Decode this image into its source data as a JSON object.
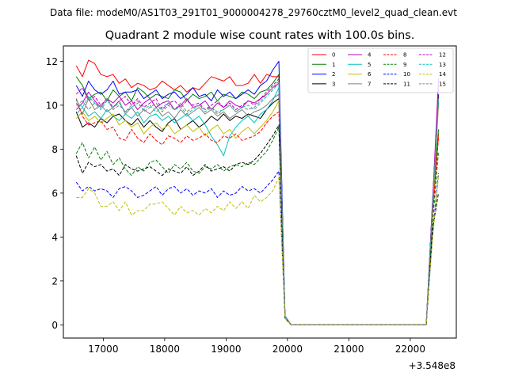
{
  "figure": {
    "suptitle": "Data file: modeM0/AS1T03_291T01_9000004278_29760cztM0_level2_quad_clean.evt"
  },
  "chart_data": {
    "type": "line",
    "title": "Quadrant 2 module wise count rates with 100.0s bins.",
    "xlabel": "",
    "ylabel": "",
    "x_offset_label": "+3.548e8",
    "xlim": [
      16350,
      22750
    ],
    "ylim": [
      -0.6,
      12.7
    ],
    "xticks": [
      17000,
      18000,
      19000,
      20000,
      21000,
      22000
    ],
    "xtick_labels": [
      "17000",
      "18000",
      "19000",
      "20000",
      "21000",
      "22000"
    ],
    "yticks": [
      0,
      2,
      4,
      6,
      8,
      10,
      12
    ],
    "ytick_labels": [
      "0",
      "2",
      "4",
      "6",
      "8",
      "10",
      "12"
    ],
    "grid": false,
    "legend": {
      "placement": "top-right",
      "ncol": 4
    },
    "x": [
      16560,
      16660,
      16760,
      16860,
      16960,
      17060,
      17160,
      17260,
      17360,
      17460,
      17560,
      17660,
      17760,
      17860,
      17960,
      18060,
      18160,
      18260,
      18360,
      18460,
      18560,
      18660,
      18760,
      18860,
      18960,
      19060,
      19160,
      19260,
      19360,
      19460,
      19560,
      19660,
      19760,
      19860,
      19960,
      20060,
      20160,
      20260,
      20360,
      20460,
      20560,
      20660,
      20760,
      20860,
      20960,
      21060,
      21160,
      21260,
      21360,
      21460,
      21560,
      21660,
      21760,
      21860,
      21960,
      22060,
      22160,
      22260,
      22360,
      22460
    ],
    "series": [
      {
        "name": "0",
        "color": "#ff0000",
        "dash": "solid",
        "values": [
          11.8,
          11.3,
          12.05,
          11.9,
          11.4,
          11.3,
          11.4,
          11.0,
          11.2,
          10.8,
          11.0,
          10.9,
          10.7,
          10.8,
          11.1,
          10.9,
          10.7,
          10.9,
          10.6,
          10.8,
          10.7,
          11.0,
          11.3,
          11.2,
          11.1,
          11.3,
          10.9,
          10.9,
          11.0,
          11.4,
          11.0,
          11.4,
          11.3,
          11.3,
          0.4,
          0,
          0,
          0,
          0,
          0,
          0,
          0,
          0,
          0,
          0,
          0,
          0,
          0,
          0,
          0,
          0,
          0,
          0,
          0,
          0,
          0,
          0,
          0,
          5.0,
          8.7
        ]
      },
      {
        "name": "1",
        "color": "#008000",
        "dash": "solid",
        "values": [
          11.3,
          10.9,
          10.3,
          10.5,
          10.6,
          10.2,
          10.7,
          10.4,
          10.6,
          10.2,
          10.8,
          10.6,
          10.3,
          10.5,
          10.4,
          10.3,
          10.7,
          10.6,
          10.2,
          10.5,
          10.3,
          10.4,
          10.6,
          10.2,
          10.5,
          10.4,
          10.3,
          10.6,
          10.5,
          10.3,
          10.6,
          10.7,
          11.0,
          11.4,
          0.4,
          0,
          0,
          0,
          0,
          0,
          0,
          0,
          0,
          0,
          0,
          0,
          0,
          0,
          0,
          0,
          0,
          0,
          0,
          0,
          0,
          0,
          0,
          0,
          5.3,
          8.9
        ]
      },
      {
        "name": "2",
        "color": "#0000ff",
        "dash": "solid",
        "values": [
          10.9,
          10.4,
          11.1,
          10.7,
          10.5,
          10.7,
          11.1,
          10.5,
          10.6,
          10.6,
          10.7,
          10.3,
          10.5,
          10.7,
          10.3,
          10.5,
          10.6,
          10.3,
          10.5,
          10.8,
          10.4,
          10.5,
          10.2,
          10.7,
          10.4,
          10.6,
          10.3,
          10.5,
          10.7,
          10.5,
          10.9,
          11.1,
          11.6,
          12.0,
          0.4,
          0,
          0,
          0,
          0,
          0,
          0,
          0,
          0,
          0,
          0,
          0,
          0,
          0,
          0,
          0,
          0,
          0,
          0,
          0,
          0,
          0,
          0,
          0,
          5.5,
          10.5
        ]
      },
      {
        "name": "3",
        "color": "#000000",
        "dash": "solid",
        "values": [
          9.7,
          9.0,
          9.2,
          9.0,
          9.4,
          9.2,
          9.5,
          9.6,
          9.3,
          9.1,
          9.4,
          9.0,
          9.3,
          9.0,
          8.8,
          9.2,
          9.4,
          8.9,
          9.1,
          9.3,
          9.0,
          9.2,
          9.5,
          9.3,
          9.6,
          9.3,
          9.5,
          9.4,
          9.6,
          9.5,
          9.4,
          9.8,
          10.1,
          10.3,
          0.4,
          0,
          0,
          0,
          0,
          0,
          0,
          0,
          0,
          0,
          0,
          0,
          0,
          0,
          0,
          0,
          0,
          0,
          0,
          0,
          0,
          0,
          0,
          0,
          5.1,
          10.4
        ]
      },
      {
        "name": "4",
        "color": "#bf00bf",
        "dash": "solid",
        "values": [
          9.8,
          10.1,
          10.6,
          10.2,
          9.9,
          10.3,
          10.1,
          10.4,
          10.0,
          10.2,
          9.8,
          10.1,
          10.3,
          9.9,
          10.1,
          10.2,
          9.8,
          10.0,
          10.3,
          9.9,
          10.0,
          10.2,
          9.8,
          10.1,
          9.9,
          10.2,
          10.0,
          9.9,
          10.2,
          10.1,
          10.3,
          10.5,
          10.8,
          11.0,
          0.4,
          0,
          0,
          0,
          0,
          0,
          0,
          0,
          0,
          0,
          0,
          0,
          0,
          0,
          0,
          0,
          0,
          0,
          0,
          0,
          0,
          0,
          0,
          0,
          5.4,
          11.2
        ]
      },
      {
        "name": "5",
        "color": "#00bfbf",
        "dash": "solid",
        "values": [
          9.6,
          9.9,
          9.5,
          9.7,
          9.4,
          9.8,
          9.5,
          9.3,
          9.6,
          9.4,
          9.7,
          9.2,
          9.5,
          9.6,
          9.3,
          9.5,
          9.2,
          9.4,
          9.6,
          9.3,
          9.5,
          9.1,
          8.6,
          8.2,
          7.7,
          8.6,
          9.0,
          9.3,
          9.5,
          9.2,
          9.6,
          9.8,
          10.2,
          10.8,
          0.4,
          0,
          0,
          0,
          0,
          0,
          0,
          0,
          0,
          0,
          0,
          0,
          0,
          0,
          0,
          0,
          0,
          0,
          0,
          0,
          0,
          0,
          0,
          0,
          5.2,
          10.2
        ]
      },
      {
        "name": "6",
        "color": "#bfbf00",
        "dash": "solid",
        "values": [
          9.4,
          9.7,
          9.3,
          9.5,
          9.2,
          9.4,
          9.6,
          9.1,
          9.3,
          9.0,
          9.2,
          8.7,
          9.0,
          9.2,
          8.9,
          9.1,
          8.7,
          8.9,
          9.1,
          8.8,
          9.0,
          8.6,
          8.9,
          9.1,
          8.7,
          8.9,
          8.5,
          8.8,
          9.0,
          8.7,
          9.0,
          9.3,
          9.7,
          10.2,
          0.4,
          0,
          0,
          0,
          0,
          0,
          0,
          0,
          0,
          0,
          0,
          0,
          0,
          0,
          0,
          0,
          0,
          0,
          0,
          0,
          0,
          0,
          0,
          0,
          5.0,
          10.0
        ]
      },
      {
        "name": "7",
        "color": "#808080",
        "dash": "solid",
        "values": [
          10.1,
          9.6,
          10.3,
          9.8,
          10.0,
          9.7,
          9.9,
          10.2,
          9.6,
          9.9,
          9.5,
          9.8,
          9.6,
          9.9,
          9.5,
          9.7,
          9.4,
          9.8,
          9.5,
          9.7,
          9.9,
          9.6,
          9.8,
          9.5,
          9.7,
          9.4,
          9.6,
          9.8,
          9.5,
          9.7,
          9.8,
          10.0,
          10.3,
          10.5,
          0.4,
          0,
          0,
          0,
          0,
          0,
          0,
          0,
          0,
          0,
          0,
          0,
          0,
          0,
          0,
          0,
          0,
          0,
          0,
          0,
          0,
          0,
          0,
          0,
          5.3,
          10.1
        ]
      },
      {
        "name": "8",
        "color": "#ff0000",
        "dash": "dashed",
        "values": [
          10.3,
          9.5,
          9.1,
          9.2,
          9.3,
          8.9,
          9.0,
          8.5,
          8.4,
          8.9,
          8.5,
          8.3,
          8.7,
          8.4,
          8.2,
          8.6,
          8.5,
          8.3,
          8.6,
          8.4,
          8.5,
          8.7,
          8.4,
          8.3,
          8.6,
          8.5,
          8.7,
          8.4,
          8.5,
          8.6,
          8.8,
          9.2,
          9.5,
          9.7,
          0.4,
          0,
          0,
          0,
          0,
          0,
          0,
          0,
          0,
          0,
          0,
          0,
          0,
          0,
          0,
          0,
          0,
          0,
          0,
          0,
          0,
          0,
          0,
          0,
          4.8,
          8.5
        ]
      },
      {
        "name": "9",
        "color": "#008000",
        "dash": "dashed",
        "values": [
          7.8,
          8.3,
          7.6,
          8.1,
          7.5,
          7.9,
          7.3,
          7.6,
          7.1,
          6.8,
          7.2,
          7.0,
          7.4,
          7.5,
          7.2,
          6.9,
          7.3,
          7.1,
          7.4,
          7.0,
          6.9,
          7.2,
          7.1,
          7.3,
          7.0,
          7.2,
          7.3,
          7.2,
          7.4,
          7.3,
          7.6,
          7.9,
          8.4,
          9.0,
          0.3,
          0,
          0,
          0,
          0,
          0,
          0,
          0,
          0,
          0,
          0,
          0,
          0,
          0,
          0,
          0,
          0,
          0,
          0,
          0,
          0,
          0,
          0,
          0,
          4.5,
          7.9
        ]
      },
      {
        "name": "10",
        "color": "#0000ff",
        "dash": "dashed",
        "values": [
          6.5,
          6.1,
          6.3,
          6.1,
          6.2,
          6.1,
          5.8,
          6.2,
          6.3,
          6.1,
          5.8,
          5.9,
          6.1,
          6.3,
          5.9,
          6.2,
          6.3,
          6.0,
          6.2,
          5.9,
          6.1,
          6.0,
          6.2,
          5.8,
          6.1,
          5.9,
          6.0,
          6.3,
          6.1,
          6.2,
          6.0,
          6.3,
          6.6,
          7.0,
          0.3,
          0,
          0,
          0,
          0,
          0,
          0,
          0,
          0,
          0,
          0,
          0,
          0,
          0,
          0,
          0,
          0,
          0,
          0,
          0,
          0,
          0,
          0,
          0,
          4.0,
          6.9
        ]
      },
      {
        "name": "11",
        "color": "#000000",
        "dash": "dashed",
        "values": [
          7.7,
          6.9,
          7.4,
          7.2,
          7.3,
          7.0,
          7.1,
          6.8,
          7.3,
          7.1,
          7.0,
          7.1,
          7.2,
          7.0,
          6.8,
          7.1,
          7.0,
          6.9,
          7.2,
          6.8,
          7.0,
          7.3,
          7.0,
          7.1,
          7.2,
          7.0,
          7.3,
          7.4,
          7.3,
          7.5,
          7.8,
          8.2,
          8.6,
          9.1,
          0.3,
          0,
          0,
          0,
          0,
          0,
          0,
          0,
          0,
          0,
          0,
          0,
          0,
          0,
          0,
          0,
          0,
          0,
          0,
          0,
          0,
          0,
          0,
          0,
          4.3,
          6.0
        ]
      },
      {
        "name": "12",
        "color": "#bf00bf",
        "dash": "dashed",
        "values": [
          10.5,
          10.8,
          10.2,
          10.4,
          10.0,
          10.3,
          9.9,
          10.2,
          10.4,
          10.0,
          10.3,
          9.9,
          10.1,
          10.3,
          9.8,
          10.1,
          10.2,
          9.9,
          10.2,
          10.0,
          10.1,
          9.8,
          10.0,
          10.2,
          9.9,
          10.1,
          9.8,
          10.0,
          10.2,
          10.0,
          10.3,
          10.6,
          10.9,
          11.2,
          0.4,
          0,
          0,
          0,
          0,
          0,
          0,
          0,
          0,
          0,
          0,
          0,
          0,
          0,
          0,
          0,
          0,
          0,
          0,
          0,
          0,
          0,
          0,
          0,
          5.4,
          10.8
        ]
      },
      {
        "name": "13",
        "color": "#00bfbf",
        "dash": "dashed",
        "values": [
          10.2,
          9.9,
          10.4,
          10.1,
          9.8,
          10.2,
          9.9,
          10.1,
          9.7,
          9.9,
          10.1,
          9.8,
          10.0,
          9.7,
          9.9,
          10.1,
          9.8,
          9.9,
          9.6,
          9.8,
          10.0,
          9.7,
          9.9,
          9.7,
          9.8,
          10.0,
          9.7,
          9.9,
          10.0,
          9.8,
          10.1,
          10.4,
          10.7,
          11.0,
          0.4,
          0,
          0,
          0,
          0,
          0,
          0,
          0,
          0,
          0,
          0,
          0,
          0,
          0,
          0,
          0,
          0,
          0,
          0,
          0,
          0,
          0,
          0,
          0,
          5.2,
          10.3
        ]
      },
      {
        "name": "14",
        "color": "#bfbf00",
        "dash": "dashed",
        "values": [
          5.8,
          5.8,
          6.2,
          6.0,
          5.4,
          5.4,
          5.6,
          5.2,
          5.6,
          5.0,
          5.2,
          5.2,
          5.5,
          5.5,
          5.6,
          5.3,
          5.0,
          5.4,
          5.1,
          5.2,
          5.0,
          5.3,
          5.1,
          5.4,
          5.2,
          5.6,
          5.3,
          5.6,
          5.3,
          5.9,
          5.6,
          5.8,
          6.1,
          6.7,
          0.3,
          0,
          0,
          0,
          0,
          0,
          0,
          0,
          0,
          0,
          0,
          0,
          0,
          0,
          0,
          0,
          0,
          0,
          0,
          0,
          0,
          0,
          0,
          0,
          3.8,
          6.8
        ]
      },
      {
        "name": "15",
        "color": "#808080",
        "dash": "dashed",
        "values": [
          10.0,
          10.2,
          9.8,
          10.1,
          9.9,
          10.3,
          9.8,
          10.0,
          9.7,
          10.0,
          10.2,
          9.7,
          9.9,
          10.1,
          9.7,
          10.0,
          9.8,
          10.1,
          9.7,
          9.9,
          10.0,
          9.8,
          9.9,
          9.6,
          9.8,
          10.0,
          9.7,
          9.9,
          9.8,
          9.9,
          10.2,
          10.5,
          10.8,
          11.1,
          0.4,
          0,
          0,
          0,
          0,
          0,
          0,
          0,
          0,
          0,
          0,
          0,
          0,
          0,
          0,
          0,
          0,
          0,
          0,
          0,
          0,
          0,
          0,
          0,
          5.3,
          10.4
        ]
      }
    ]
  }
}
